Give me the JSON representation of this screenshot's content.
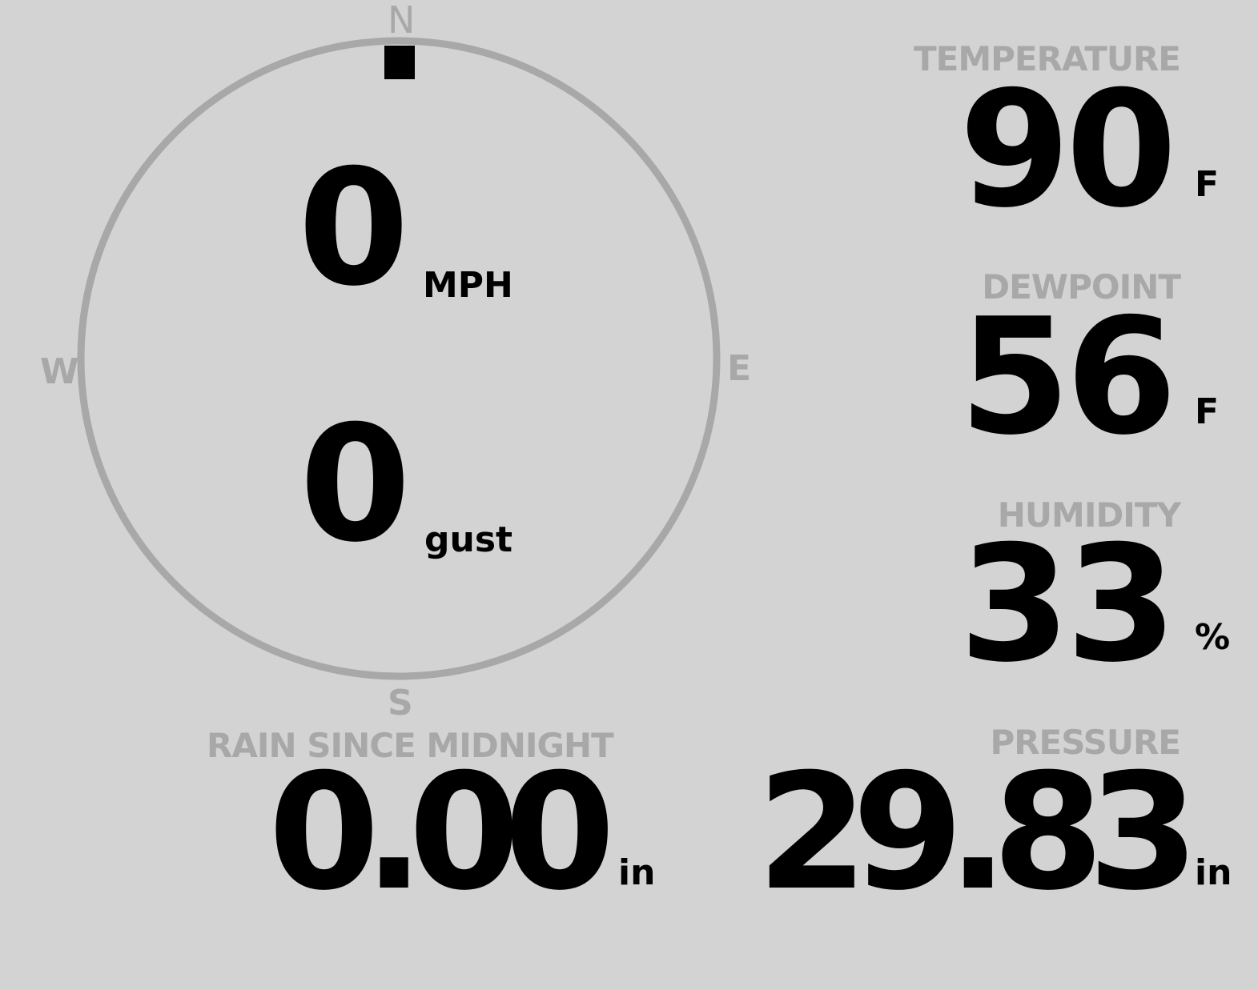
{
  "colors": {
    "background": "#d3d3d3",
    "label": "#a8a8a8",
    "value": "#000000"
  },
  "wind": {
    "direction_degrees": 0,
    "speed": "0",
    "speed_unit": "MPH",
    "gust": "0",
    "gust_unit": "gust",
    "compass": {
      "n": "N",
      "e": "E",
      "s": "S",
      "w": "W"
    }
  },
  "temperature": {
    "label": "TEMPERATURE",
    "value": "90",
    "unit": "F"
  },
  "dewpoint": {
    "label": "DEWPOINT",
    "value": "56",
    "unit": "F"
  },
  "humidity": {
    "label": "HUMIDITY",
    "value": "33",
    "unit": "%"
  },
  "rain": {
    "label": "RAIN SINCE MIDNIGHT",
    "value": "0.00",
    "unit": "in"
  },
  "pressure": {
    "label": "PRESSURE",
    "value": "29.83",
    "unit": "in"
  }
}
